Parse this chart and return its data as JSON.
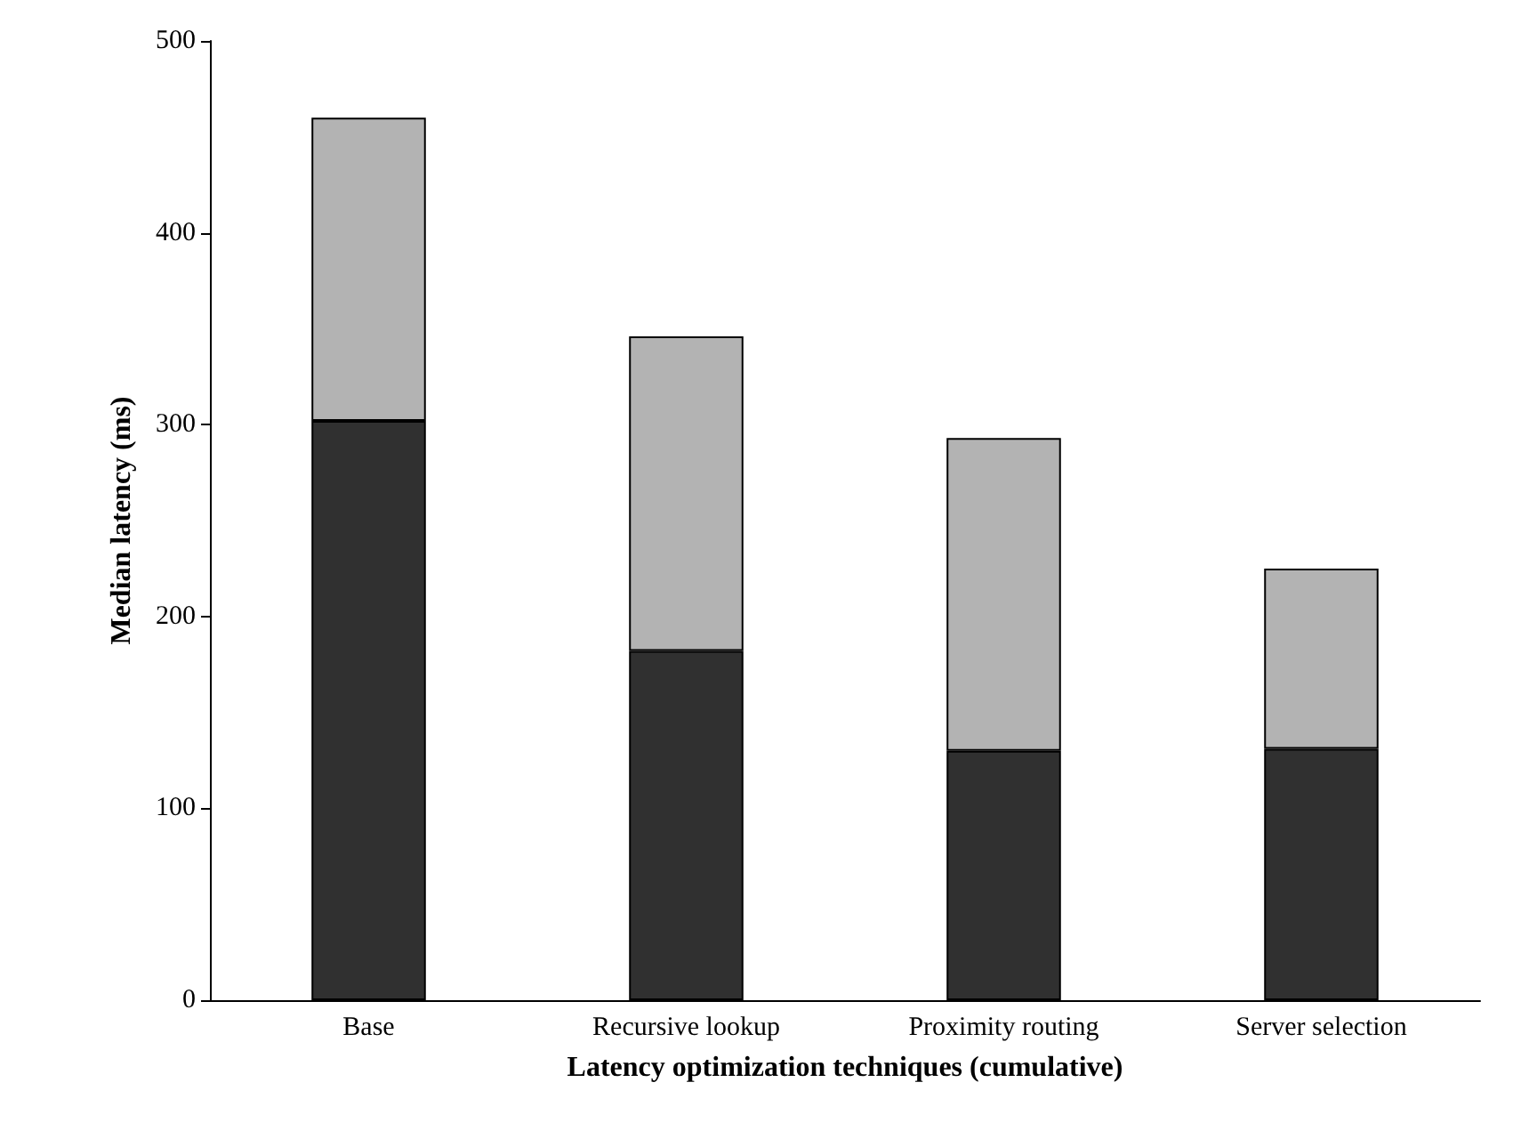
{
  "chart_data": {
    "type": "bar",
    "stacked": true,
    "xlabel": "Latency optimization techniques (cumulative)",
    "ylabel": "Median latency (ms)",
    "categories": [
      "Base",
      "Recursive lookup",
      "Proximity routing",
      "Server selection"
    ],
    "series": [
      {
        "color": "#303030",
        "values": [
          302,
          182,
          130,
          131
        ]
      },
      {
        "color": "#b3b3b3",
        "values": [
          158,
          164,
          163,
          94
        ]
      }
    ],
    "ylim": [
      0,
      500
    ],
    "yticks": [
      0,
      100,
      200,
      300,
      400,
      500
    ],
    "grid": false
  }
}
